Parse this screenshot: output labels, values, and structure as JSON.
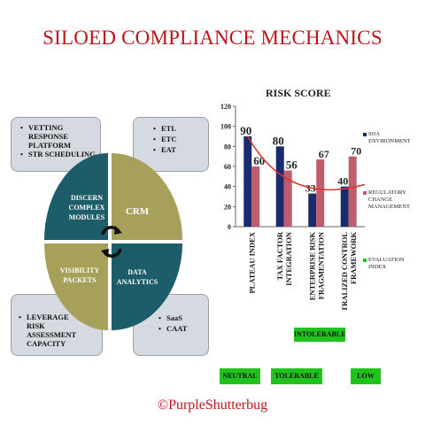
{
  "title": "SILOED COMPLIANCE MECHANICS",
  "boxes": {
    "top_left": [
      "VETTING RESPONSE PLATFORM",
      "STR SCHEDULING"
    ],
    "top_right": [
      "ETL",
      "ETC",
      "EAT"
    ],
    "bottom_left": [
      "LEVERAGE RISK ASSESSMENT CAPACITY"
    ],
    "bottom_right": [
      "SaaS",
      "CAAT"
    ]
  },
  "quadrants": {
    "top_left": "DISCERN COMPLEX MODULES",
    "top_right": "CRM",
    "bottom_left": "VISIBILITY PACKETS",
    "bottom_right": "DATA ANALYTICS"
  },
  "colors": {
    "teal": "#1d5d6a",
    "olive": "#a7a05b",
    "navy": "#1a2b6d",
    "rose": "#c05d6c",
    "trend": "#e0302b",
    "green": "#22c21e",
    "red": "#c0141b"
  },
  "chart_data": {
    "type": "bar",
    "title": "RISK SCORE",
    "categories": [
      "PLATEAU INDEX",
      "TAX FACTOR INTEGRATION",
      "ENTERPRISE RISK FRAGMENTATION",
      "CENTRALIZED CONTROL FRAMEWORK"
    ],
    "series": [
      {
        "name": "SOA ENVIRONMENT",
        "values": [
          90,
          80,
          33,
          40
        ]
      },
      {
        "name": "REGULATORY CHANGE MANAGEMENT",
        "values": [
          60,
          56,
          67,
          70
        ]
      }
    ],
    "legend_extra": "EVALUATION INDEX",
    "yticks": [
      0,
      20,
      40,
      60,
      80,
      100,
      120
    ],
    "ylim": [
      0,
      120
    ],
    "trendline": true,
    "legend_position": "right"
  },
  "badges": {
    "neutral": "NEUTRAL",
    "tolerable": "TOLERABLE",
    "intolerable": "INTOLERABLE",
    "low": "LOW"
  },
  "footer": "©PurpleShutterbug"
}
